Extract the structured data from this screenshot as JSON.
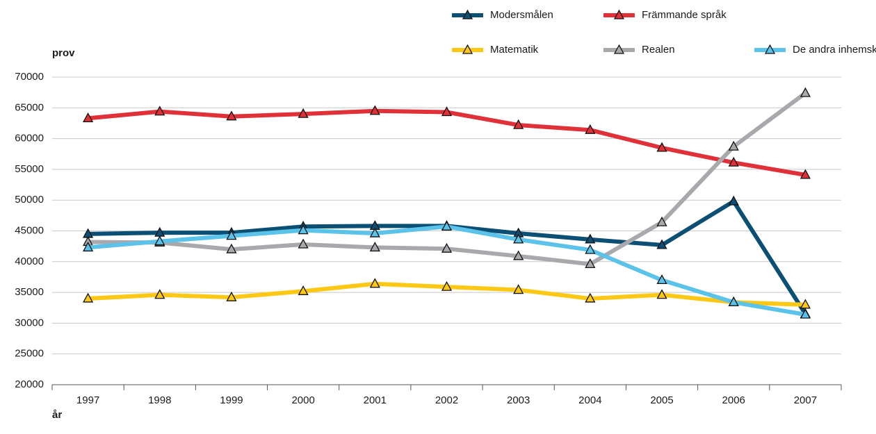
{
  "chart_data": {
    "type": "line",
    "y_label": "prov",
    "x_label": "år",
    "categories": [
      "1997",
      "1998",
      "1999",
      "2000",
      "2001",
      "2002",
      "2003",
      "2004",
      "2005",
      "2006",
      "2007"
    ],
    "series": [
      {
        "name": "Modersmålen",
        "color": "#0b4f75",
        "values": [
          44500,
          44700,
          44700,
          45700,
          45800,
          45800,
          44600,
          43600,
          42700,
          49800,
          31500
        ]
      },
      {
        "name": "Främmande språk",
        "color": "#e03038",
        "values": [
          63300,
          64400,
          63600,
          64000,
          64500,
          64300,
          62200,
          61400,
          58500,
          56100,
          54100
        ]
      },
      {
        "name": "Matematik",
        "color": "#fcc813",
        "values": [
          34000,
          34600,
          34200,
          35200,
          36400,
          35900,
          35400,
          34000,
          34600,
          33400,
          33000
        ]
      },
      {
        "name": "Realen",
        "color": "#a7a9ac",
        "values": [
          43200,
          43100,
          42000,
          42800,
          42300,
          42100,
          40900,
          39600,
          46400,
          58700,
          67400
        ]
      },
      {
        "name": "De andra inhemska",
        "color": "#5bc2ea",
        "values": [
          42300,
          43300,
          44200,
          45100,
          44600,
          45700,
          43600,
          41900,
          37000,
          33400,
          31400
        ]
      }
    ],
    "ylim": [
      20000,
      70000
    ],
    "yticks": [
      20000,
      25000,
      30000,
      35000,
      40000,
      45000,
      50000,
      55000,
      60000,
      65000,
      70000
    ],
    "grid": true
  }
}
